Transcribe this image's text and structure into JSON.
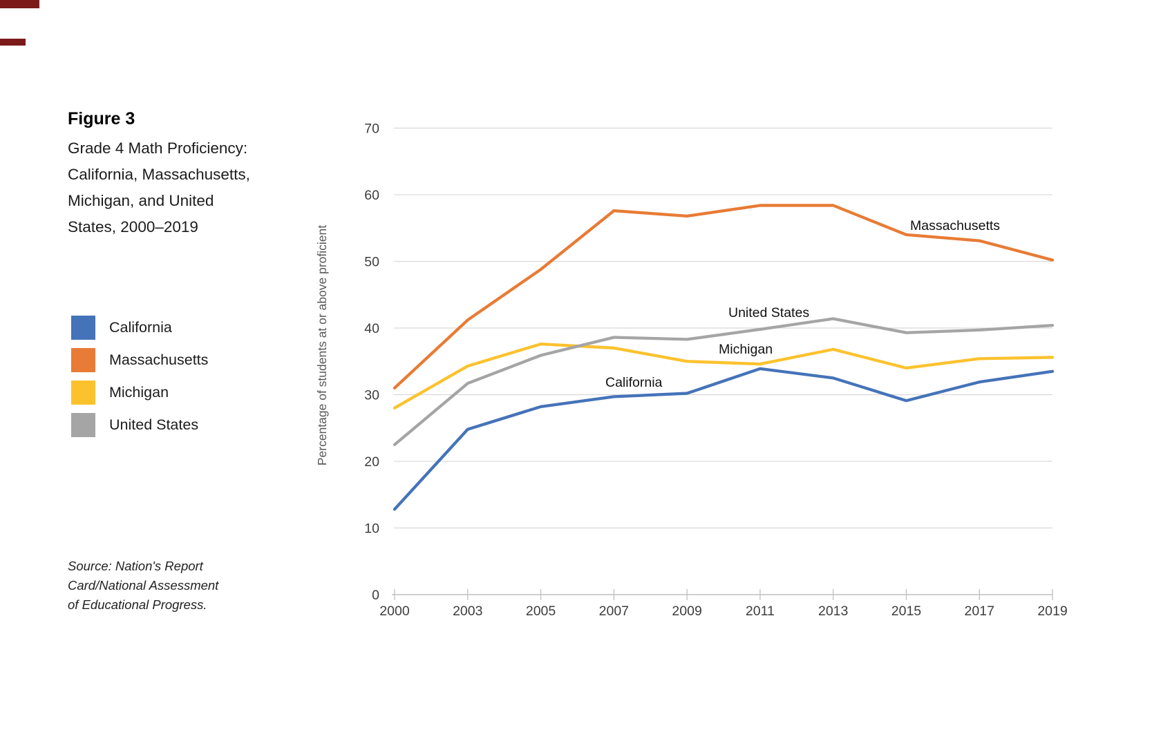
{
  "artifacts": {
    "edge_mark_color": "#7c1a1a"
  },
  "figure": {
    "label": "Figure 3",
    "title_lines": [
      "Grade 4 Math Proficiency:",
      "California, Massachusetts,",
      "Michigan, and United",
      "States, 2000–2019"
    ],
    "source_lines": [
      "Source: Nation's Report",
      "Card/National Assessment",
      "of Educational Progress."
    ]
  },
  "legend": {
    "items": [
      {
        "label": "California",
        "color": "#4573b9"
      },
      {
        "label": "Massachusetts",
        "color": "#e87b35"
      },
      {
        "label": "Michigan",
        "color": "#fcc22e"
      },
      {
        "label": "United States",
        "color": "#a5a5a5"
      }
    ]
  },
  "chart_data": {
    "type": "line",
    "title": "Grade 4 Math Proficiency: California, Massachusetts, Michigan, and United States, 2000–2019",
    "xlabel": "",
    "ylabel": "Percentage of students at or above proficient",
    "x": [
      2000,
      2003,
      2005,
      2007,
      2009,
      2011,
      2013,
      2015,
      2017,
      2019
    ],
    "yticks": [
      0,
      10,
      20,
      30,
      40,
      50,
      60,
      70
    ],
    "ylim": [
      0,
      70
    ],
    "grid": true,
    "legend_position": "left",
    "series": [
      {
        "name": "California",
        "color": "#4573b9",
        "values": [
          12.8,
          24.8,
          28.2,
          29.7,
          30.2,
          33.9,
          32.5,
          29.1,
          31.9,
          33.5
        ]
      },
      {
        "name": "Massachusetts",
        "color": "#e87b35",
        "values": [
          31.0,
          41.2,
          48.8,
          57.6,
          56.8,
          58.4,
          58.4,
          54.0,
          53.1,
          50.2
        ]
      },
      {
        "name": "Michigan",
        "color": "#fcc22e",
        "values": [
          28.0,
          34.3,
          37.6,
          37.0,
          35.0,
          34.6,
          36.8,
          34.0,
          35.4,
          35.6
        ]
      },
      {
        "name": "United States",
        "color": "#a5a5a5",
        "values": [
          22.5,
          31.7,
          35.9,
          38.6,
          38.3,
          39.8,
          41.4,
          39.3,
          39.7,
          40.4
        ]
      }
    ],
    "axis_text_color": "#3d3d3d",
    "gridline_color": "#d9d9d9",
    "axis_line_color": "#bfbfbf",
    "series_label_color": "#111111"
  }
}
